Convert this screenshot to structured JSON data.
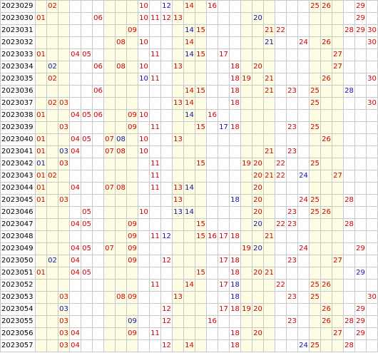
{
  "palette": {
    "red": "#cc0000",
    "blue": "#1111aa",
    "band": "#fdfde4",
    "grid": "#c8c8c8"
  },
  "band_columns": [
    1,
    2,
    3,
    7,
    8,
    9,
    13,
    14,
    15,
    19,
    20,
    21,
    25,
    26,
    27
  ],
  "rows": [
    {
      "period": "2023029",
      "red": [
        2,
        10,
        14,
        16,
        25,
        26,
        29
      ],
      "blue": [
        12
      ]
    },
    {
      "period": "2023030",
      "red": [
        1,
        6,
        10,
        11,
        12,
        13,
        29
      ],
      "blue": [
        20
      ]
    },
    {
      "period": "2023031",
      "red": [
        9,
        15,
        21,
        22,
        28,
        29,
        30
      ],
      "blue": [
        14
      ]
    },
    {
      "period": "2023032",
      "red": [
        8,
        10,
        14,
        24,
        26,
        30
      ],
      "blue": [
        21
      ]
    },
    {
      "period": "2023033",
      "red": [
        1,
        4,
        5,
        11,
        15,
        17,
        27
      ],
      "blue": [
        14
      ]
    },
    {
      "period": "2023034",
      "red": [
        6,
        8,
        10,
        13,
        18,
        20,
        27
      ],
      "blue": [
        2
      ]
    },
    {
      "period": "2023035",
      "red": [
        2,
        11,
        18,
        19,
        21,
        26,
        30
      ],
      "blue": [
        10
      ]
    },
    {
      "period": "2023036",
      "red": [
        6,
        14,
        15,
        18,
        21,
        23,
        25
      ],
      "blue": [
        28
      ]
    },
    {
      "period": "2023037",
      "red": [
        2,
        3,
        13,
        14,
        18,
        25,
        30
      ],
      "blue": []
    },
    {
      "period": "2023038",
      "red": [
        1,
        4,
        5,
        6,
        9,
        10,
        16
      ],
      "blue": [
        14
      ]
    },
    {
      "period": "2023039",
      "red": [
        3,
        9,
        11,
        15,
        18,
        23,
        25
      ],
      "blue": [
        17
      ]
    },
    {
      "period": "2023040",
      "red": [
        1,
        4,
        5,
        7,
        10,
        13,
        26
      ],
      "blue": [
        8
      ]
    },
    {
      "period": "2023041",
      "red": [
        1,
        4,
        7,
        8,
        10,
        21,
        23
      ],
      "blue": [
        3
      ]
    },
    {
      "period": "2023042",
      "red": [
        3,
        11,
        15,
        19,
        20,
        22,
        25
      ],
      "blue": [
        1
      ]
    },
    {
      "period": "2023043",
      "red": [
        1,
        2,
        11,
        20,
        21,
        22,
        27
      ],
      "blue": [
        24
      ]
    },
    {
      "period": "2023044",
      "red": [
        1,
        4,
        7,
        8,
        11,
        13,
        20
      ],
      "blue": [
        14
      ]
    },
    {
      "period": "2023045",
      "red": [
        1,
        3,
        13,
        20,
        24,
        25,
        28
      ],
      "blue": [
        18
      ]
    },
    {
      "period": "2023046",
      "red": [
        5,
        10,
        20,
        23,
        25,
        26
      ],
      "blue": [
        13,
        14
      ]
    },
    {
      "period": "2023047",
      "red": [
        4,
        5,
        9,
        15,
        22,
        23,
        28
      ],
      "blue": [
        20
      ]
    },
    {
      "period": "2023048",
      "red": [
        9,
        11,
        15,
        16,
        17,
        18,
        21
      ],
      "blue": [
        12
      ]
    },
    {
      "period": "2023049",
      "red": [
        4,
        5,
        7,
        9,
        19,
        24,
        29
      ],
      "blue": [
        20
      ]
    },
    {
      "period": "2023050",
      "red": [
        4,
        9,
        12,
        17,
        18,
        23,
        27
      ],
      "blue": [
        2
      ]
    },
    {
      "period": "2023051",
      "red": [
        1,
        4,
        5,
        15,
        18,
        20,
        21
      ],
      "blue": [
        29
      ]
    },
    {
      "period": "2023052",
      "red": [
        11,
        14,
        17,
        22,
        25,
        26
      ],
      "blue": [
        18
      ]
    },
    {
      "period": "2023053",
      "red": [
        3,
        8,
        9,
        13,
        23,
        25,
        30
      ],
      "blue": [
        18
      ]
    },
    {
      "period": "2023054",
      "red": [
        12,
        17,
        18,
        19,
        20,
        26,
        29
      ],
      "blue": [
        3
      ]
    },
    {
      "period": "2023055",
      "red": [
        3,
        12,
        16,
        23,
        26,
        28,
        29
      ],
      "blue": [
        9
      ]
    },
    {
      "period": "2023056",
      "red": [
        3,
        4,
        9,
        11,
        18,
        20,
        27,
        29
      ],
      "blue": []
    },
    {
      "period": "2023057",
      "red": [
        3,
        4,
        12,
        14,
        18,
        25,
        28
      ],
      "blue": [
        24
      ]
    }
  ]
}
